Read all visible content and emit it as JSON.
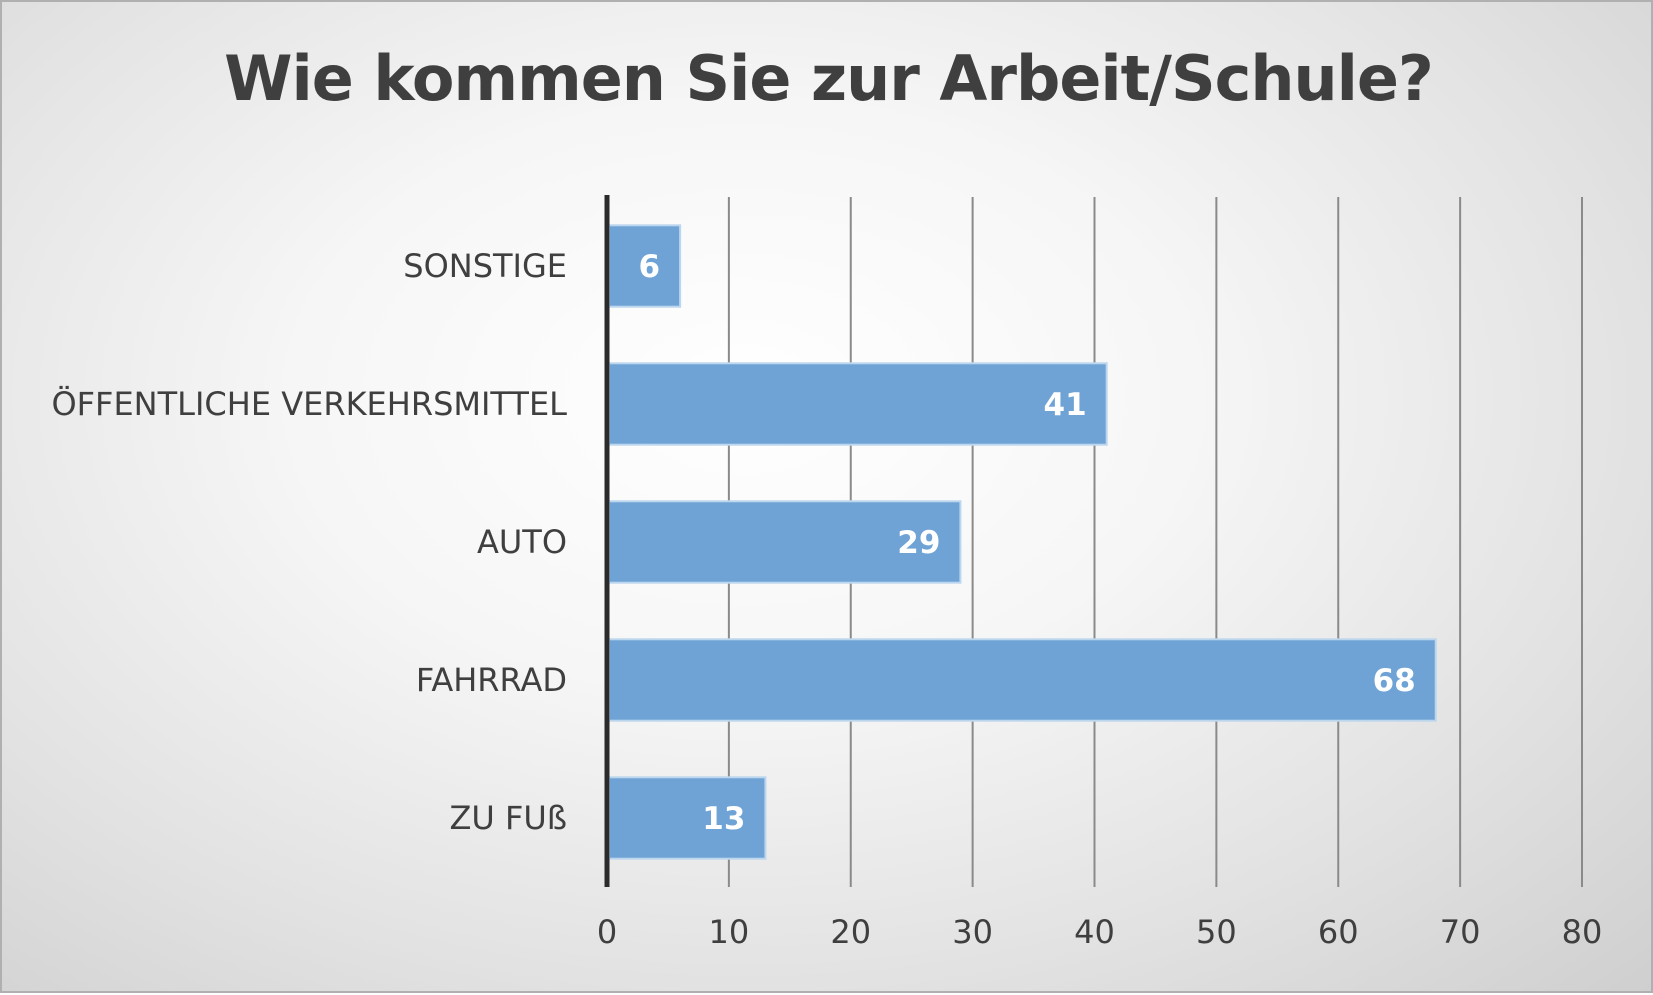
{
  "chart_data": {
    "type": "bar",
    "orientation": "horizontal",
    "title": "Wie kommen Sie zur Arbeit/Schule?",
    "xlabel": "",
    "ylabel": "",
    "categories": [
      "ZU FUß",
      "FAHRRAD",
      "AUTO",
      "ÖFFENTLICHE VERKEHRSMITTEL",
      "SONSTIGE"
    ],
    "values": [
      13,
      68,
      29,
      41,
      6
    ],
    "data_labels": [
      "13",
      "68",
      "29",
      "41",
      "6"
    ],
    "xlim": [
      0,
      80
    ],
    "ticks": [
      "0",
      "10",
      "20",
      "30",
      "40",
      "50",
      "60",
      "70",
      "80"
    ],
    "tick_values": [
      0,
      10,
      20,
      30,
      40,
      50,
      60,
      70,
      80
    ],
    "grid": true,
    "legend": "none",
    "colors": {
      "bar_fill": "#6fa3d6",
      "bar_stroke": "#bcd6ee",
      "gridline": "#8a8a8a",
      "axis": "#2b2b2b",
      "text": "#3f3f3f",
      "data_label": "#ffffff"
    }
  }
}
